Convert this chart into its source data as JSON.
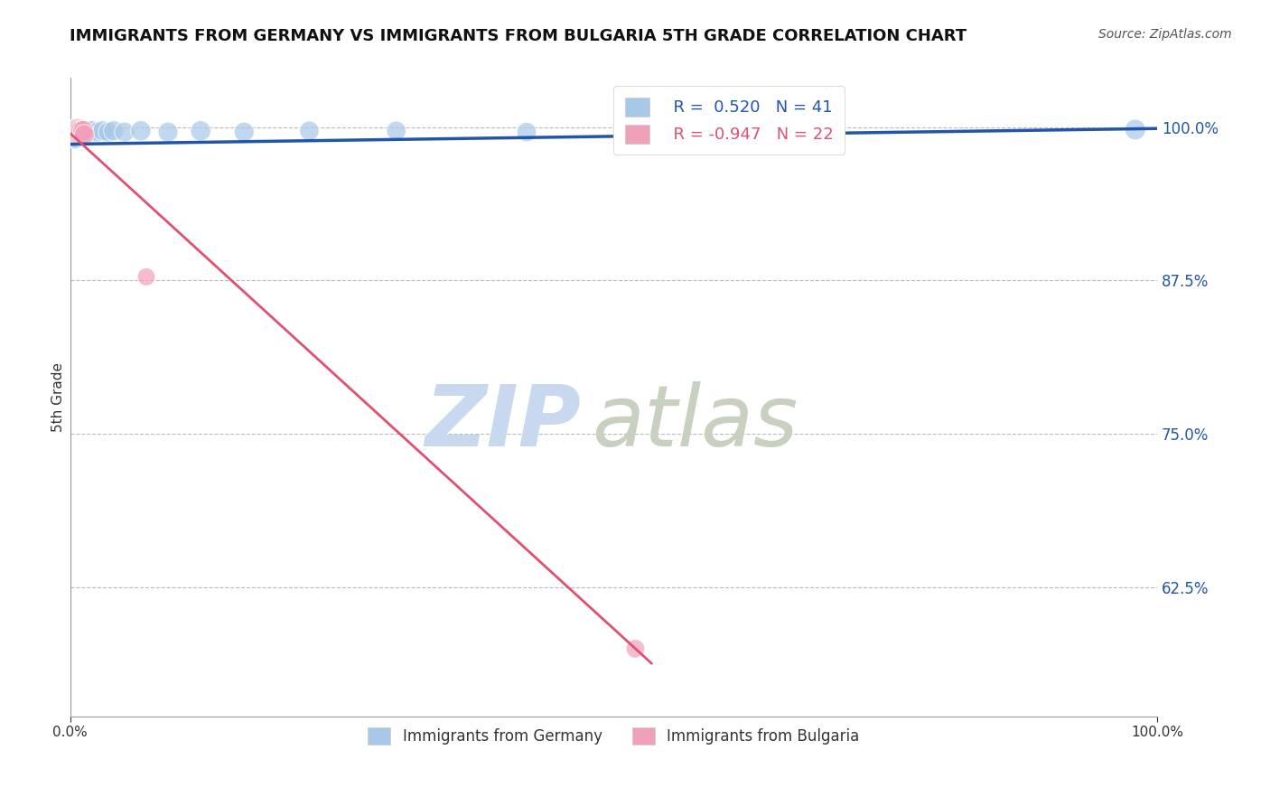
{
  "title": "IMMIGRANTS FROM GERMANY VS IMMIGRANTS FROM BULGARIA 5TH GRADE CORRELATION CHART",
  "source": "Source: ZipAtlas.com",
  "ylabel": "5th Grade",
  "xlim": [
    0.0,
    1.0
  ],
  "ylim": [
    0.52,
    1.04
  ],
  "yticks": [
    0.625,
    0.75,
    0.875,
    1.0
  ],
  "ytick_labels": [
    "62.5%",
    "75.0%",
    "87.5%",
    "100.0%"
  ],
  "xticks": [
    0.0,
    1.0
  ],
  "xtick_labels": [
    "0.0%",
    "100.0%"
  ],
  "blue_R": 0.52,
  "blue_N": 41,
  "pink_R": -0.947,
  "pink_N": 22,
  "blue_color": "#a8c8e8",
  "pink_color": "#f0a0b8",
  "blue_line_color": "#2255aa",
  "pink_line_color": "#e05070",
  "legend_blue_label": "Immigrants from Germany",
  "legend_pink_label": "Immigrants from Bulgaria",
  "watermark_zip": "ZIP",
  "watermark_atlas": "atlas",
  "watermark_color_zip": "#c8d8ee",
  "watermark_color_atlas": "#c8d0c0",
  "background_color": "#ffffff",
  "grid_color": "#bbbbbb",
  "title_fontsize": 13,
  "source_fontsize": 10,
  "blue_scatter_x": [
    0.001,
    0.001,
    0.002,
    0.002,
    0.003,
    0.003,
    0.003,
    0.004,
    0.004,
    0.004,
    0.005,
    0.005,
    0.005,
    0.006,
    0.006,
    0.007,
    0.007,
    0.008,
    0.008,
    0.009,
    0.01,
    0.011,
    0.012,
    0.014,
    0.016,
    0.018,
    0.02,
    0.025,
    0.03,
    0.035,
    0.04,
    0.05,
    0.065,
    0.09,
    0.12,
    0.16,
    0.22,
    0.3,
    0.42,
    0.7,
    0.98
  ],
  "blue_scatter_y": [
    0.998,
    0.993,
    0.996,
    0.992,
    0.998,
    0.994,
    0.99,
    0.997,
    0.993,
    0.989,
    0.998,
    0.994,
    0.99,
    0.997,
    0.993,
    0.998,
    0.994,
    0.997,
    0.993,
    0.997,
    0.997,
    0.995,
    0.997,
    0.995,
    0.997,
    0.995,
    0.997,
    0.996,
    0.997,
    0.996,
    0.997,
    0.996,
    0.997,
    0.996,
    0.997,
    0.996,
    0.997,
    0.997,
    0.996,
    0.997,
    0.998
  ],
  "blue_scatter_sizes": [
    200,
    160,
    220,
    180,
    250,
    200,
    160,
    280,
    230,
    180,
    300,
    250,
    200,
    270,
    220,
    280,
    230,
    290,
    240,
    280,
    260,
    240,
    260,
    240,
    260,
    240,
    260,
    250,
    260,
    250,
    260,
    250,
    260,
    250,
    260,
    250,
    240,
    240,
    240,
    280,
    270
  ],
  "pink_scatter_x": [
    0.001,
    0.001,
    0.002,
    0.002,
    0.003,
    0.003,
    0.004,
    0.004,
    0.005,
    0.005,
    0.006,
    0.006,
    0.007,
    0.007,
    0.008,
    0.009,
    0.01,
    0.011,
    0.012,
    0.013,
    0.07,
    0.52
  ],
  "pink_scatter_y": [
    0.998,
    0.994,
    0.997,
    0.993,
    0.998,
    0.994,
    0.997,
    0.993,
    0.998,
    0.994,
    0.997,
    0.993,
    0.998,
    0.994,
    0.997,
    0.994,
    0.997,
    0.994,
    0.997,
    0.994,
    0.878,
    0.575
  ],
  "pink_scatter_sizes": [
    200,
    160,
    220,
    180,
    250,
    200,
    270,
    220,
    290,
    240,
    270,
    220,
    290,
    240,
    270,
    250,
    270,
    250,
    270,
    250,
    200,
    220
  ],
  "blue_trendline_x": [
    -0.01,
    1.01
  ],
  "blue_trendline_y": [
    0.986,
    0.999
  ],
  "pink_trendline_x": [
    -0.01,
    0.535
  ],
  "pink_trendline_y": [
    1.003,
    0.563
  ]
}
